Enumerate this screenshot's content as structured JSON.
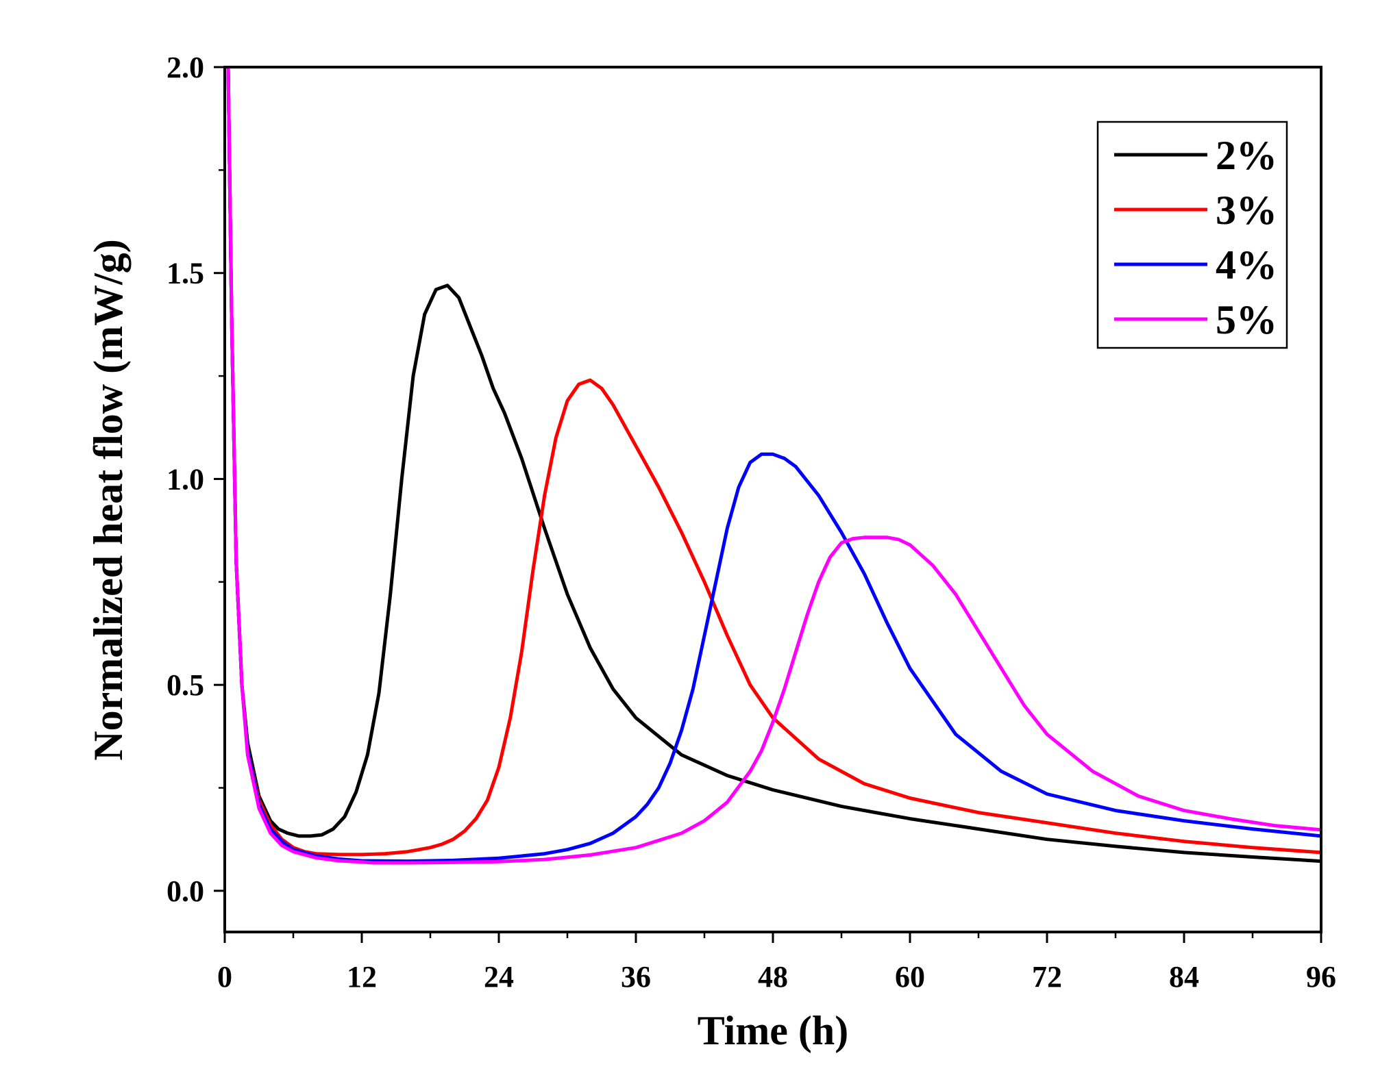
{
  "chart_data": {
    "type": "line",
    "title": "",
    "xlabel": "Time (h)",
    "ylabel": "Normalized heat flow (mW/g)",
    "xlim": [
      0,
      96
    ],
    "ylim": [
      -0.1,
      2.0
    ],
    "xticks": [
      0,
      12,
      24,
      36,
      48,
      60,
      72,
      84,
      96
    ],
    "xtick_labels": [
      "0",
      "12",
      "24",
      "36",
      "48",
      "60",
      "72",
      "84",
      "96"
    ],
    "yticks": [
      0.0,
      0.5,
      1.0,
      1.5,
      2.0
    ],
    "ytick_labels": [
      "0.0",
      "0.5",
      "1.0",
      "1.5",
      "2.0"
    ],
    "grid": false,
    "legend_position": "top-right",
    "series": [
      {
        "name": "2%",
        "color": "#000000",
        "x": [
          0.3,
          0.6,
          1,
          1.5,
          2,
          3,
          4,
          4.7,
          5.5,
          6.5,
          7.5,
          8.5,
          9.5,
          10.5,
          11.5,
          12.5,
          13.5,
          14.5,
          15.5,
          16.5,
          17.5,
          18.5,
          19.5,
          20.5,
          21.5,
          22.5,
          23.5,
          24.5,
          26,
          28,
          30,
          32,
          34,
          36,
          40,
          44,
          48,
          54,
          60,
          66,
          72,
          78,
          84,
          90,
          96
        ],
        "values": [
          2.0,
          1.4,
          0.8,
          0.5,
          0.36,
          0.23,
          0.17,
          0.15,
          0.14,
          0.133,
          0.133,
          0.136,
          0.15,
          0.18,
          0.24,
          0.33,
          0.48,
          0.72,
          1.0,
          1.25,
          1.4,
          1.46,
          1.47,
          1.44,
          1.37,
          1.3,
          1.22,
          1.16,
          1.05,
          0.88,
          0.72,
          0.59,
          0.49,
          0.42,
          0.33,
          0.28,
          0.245,
          0.205,
          0.175,
          0.15,
          0.125,
          0.108,
          0.093,
          0.082,
          0.072
        ]
      },
      {
        "name": "3%",
        "color": "#ff0000",
        "x": [
          0.3,
          0.6,
          1,
          1.5,
          2,
          3,
          4,
          5,
          6,
          7,
          8,
          10,
          12,
          14,
          16,
          18,
          19,
          20,
          21,
          22,
          23,
          24,
          25,
          26,
          27,
          28,
          29,
          30,
          31,
          32,
          33,
          34,
          35,
          36,
          37,
          38,
          40,
          42,
          44,
          46,
          48,
          52,
          56,
          60,
          66,
          72,
          78,
          84,
          90,
          96
        ],
        "values": [
          2.0,
          1.4,
          0.8,
          0.5,
          0.34,
          0.22,
          0.16,
          0.125,
          0.105,
          0.095,
          0.09,
          0.088,
          0.088,
          0.09,
          0.095,
          0.105,
          0.113,
          0.125,
          0.145,
          0.175,
          0.22,
          0.3,
          0.42,
          0.58,
          0.78,
          0.96,
          1.1,
          1.19,
          1.23,
          1.24,
          1.22,
          1.18,
          1.13,
          1.08,
          1.03,
          0.98,
          0.87,
          0.75,
          0.62,
          0.5,
          0.42,
          0.32,
          0.26,
          0.225,
          0.19,
          0.165,
          0.14,
          0.12,
          0.105,
          0.093
        ]
      },
      {
        "name": "4%",
        "color": "#0000ff",
        "x": [
          0.3,
          0.6,
          1,
          1.5,
          2,
          3,
          4,
          5,
          6,
          8,
          10,
          12,
          16,
          20,
          24,
          28,
          30,
          32,
          34,
          36,
          37,
          38,
          39,
          40,
          41,
          42,
          43,
          44,
          45,
          46,
          47,
          48,
          49,
          50,
          52,
          54,
          56,
          58,
          60,
          64,
          68,
          72,
          78,
          84,
          90,
          96
        ],
        "values": [
          2.0,
          1.4,
          0.8,
          0.5,
          0.34,
          0.21,
          0.15,
          0.12,
          0.1,
          0.085,
          0.077,
          0.073,
          0.072,
          0.074,
          0.079,
          0.09,
          0.1,
          0.115,
          0.14,
          0.18,
          0.21,
          0.25,
          0.31,
          0.39,
          0.49,
          0.62,
          0.75,
          0.88,
          0.98,
          1.04,
          1.06,
          1.06,
          1.05,
          1.03,
          0.96,
          0.87,
          0.77,
          0.65,
          0.54,
          0.38,
          0.29,
          0.235,
          0.195,
          0.17,
          0.15,
          0.133
        ]
      },
      {
        "name": "5%",
        "color": "#ff00ff",
        "x": [
          0.3,
          0.6,
          1,
          1.5,
          2,
          3,
          4,
          5,
          6,
          8,
          10,
          12,
          13,
          16,
          20,
          24,
          28,
          32,
          36,
          40,
          42,
          44,
          46,
          47,
          48,
          49,
          50,
          51,
          52,
          53,
          54,
          55,
          56,
          57,
          58,
          59,
          60,
          62,
          64,
          66,
          68,
          70,
          72,
          76,
          80,
          84,
          88,
          92,
          96
        ],
        "values": [
          2.0,
          1.4,
          0.8,
          0.5,
          0.33,
          0.2,
          0.14,
          0.11,
          0.095,
          0.08,
          0.073,
          0.07,
          0.068,
          0.068,
          0.069,
          0.071,
          0.076,
          0.087,
          0.105,
          0.14,
          0.17,
          0.215,
          0.29,
          0.34,
          0.41,
          0.49,
          0.58,
          0.67,
          0.75,
          0.81,
          0.845,
          0.855,
          0.858,
          0.858,
          0.858,
          0.853,
          0.84,
          0.79,
          0.72,
          0.63,
          0.54,
          0.45,
          0.38,
          0.29,
          0.23,
          0.195,
          0.175,
          0.158,
          0.148
        ]
      }
    ]
  }
}
